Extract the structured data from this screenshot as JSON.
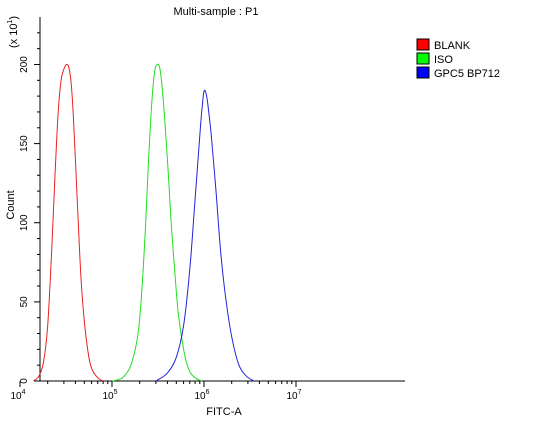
{
  "chart_data": {
    "type": "line",
    "title": "Multi-sample : P1",
    "xlabel": "FITC-A",
    "ylabel": "Count",
    "y_multiplier_label": "(x 10",
    "y_multiplier_exp": "1",
    "x_scale": "log",
    "xlim": [
      10000,
      10000000
    ],
    "ylim": [
      0,
      230
    ],
    "x_ticks": [
      {
        "base": "10",
        "exp": "4",
        "value": 10000
      },
      {
        "base": "10",
        "exp": "5",
        "value": 100000
      },
      {
        "base": "10",
        "exp": "6",
        "value": 1000000
      },
      {
        "base": "10",
        "exp": "7",
        "value": 10000000
      }
    ],
    "y_ticks": [
      {
        "label": "0",
        "value": 0
      },
      {
        "label": "50",
        "value": 50
      },
      {
        "label": "100",
        "value": 100
      },
      {
        "label": "150",
        "value": 150
      },
      {
        "label": "200",
        "value": 200
      }
    ],
    "legend_position": "top-right",
    "legend_border": true,
    "grid": false,
    "series": [
      {
        "name": "BLANK",
        "color": "#e8211f",
        "swatch": "#ff0000",
        "x": [
          14000,
          16000,
          18000,
          20000,
          22000,
          24000,
          26000,
          28000,
          30000,
          32000,
          34000,
          36000,
          38000,
          40000,
          43000,
          46000,
          50000,
          55000,
          60000,
          70000,
          80000
        ],
        "y": [
          0,
          3,
          12,
          35,
          80,
          130,
          170,
          190,
          197,
          200,
          198,
          188,
          168,
          140,
          100,
          65,
          38,
          18,
          8,
          2,
          0
        ]
      },
      {
        "name": "ISO",
        "color": "#22dd22",
        "swatch": "#00ff00",
        "x": [
          100000,
          130000,
          160000,
          190000,
          210000,
          230000,
          250000,
          270000,
          290000,
          310000,
          330000,
          350000,
          380000,
          410000,
          440000,
          480000,
          520000,
          570000,
          630000,
          700000,
          800000,
          950000
        ],
        "y": [
          0,
          2,
          10,
          28,
          55,
          95,
          140,
          175,
          195,
          200,
          198,
          186,
          160,
          130,
          100,
          70,
          45,
          28,
          14,
          6,
          2,
          0
        ]
      },
      {
        "name": "GPC5 BP712",
        "color": "#2222dd",
        "swatch": "#0000ff",
        "x": [
          300000,
          400000,
          500000,
          600000,
          700000,
          800000,
          900000,
          950000,
          1000000,
          1050000,
          1100000,
          1200000,
          1350000,
          1500000,
          1700000,
          2000000,
          2400000,
          2900000,
          3500000
        ],
        "y": [
          0,
          5,
          15,
          35,
          70,
          115,
          155,
          172,
          183,
          182,
          175,
          155,
          120,
          85,
          55,
          28,
          10,
          3,
          0
        ]
      }
    ]
  }
}
